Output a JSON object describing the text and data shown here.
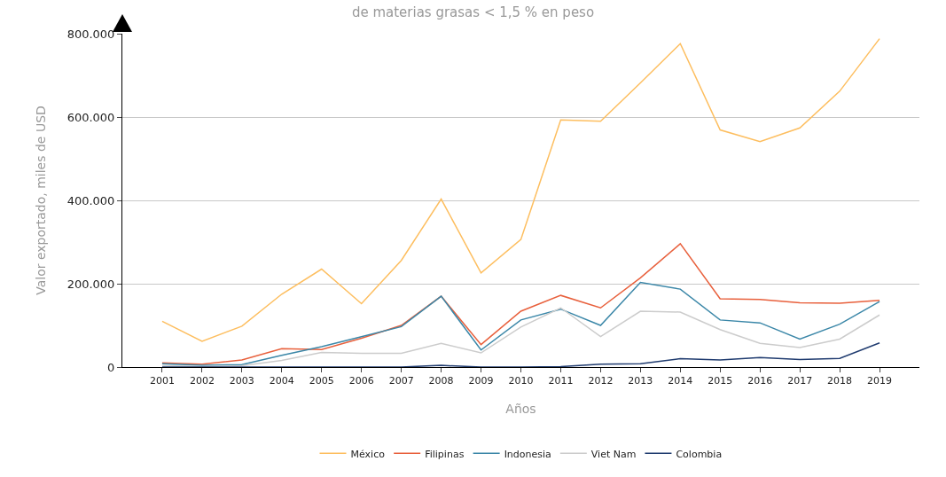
{
  "chart_data": {
    "type": "line",
    "title": "de materias grasas < 1,5 % en peso",
    "xlabel": "Años",
    "ylabel": "Valor exportado, miles de USD",
    "categories": [
      "2001",
      "2002",
      "2003",
      "2004",
      "2005",
      "2006",
      "2007",
      "2008",
      "2009",
      "2010",
      "2011",
      "2012",
      "2013",
      "2014",
      "2015",
      "2016",
      "2017",
      "2018",
      "2019"
    ],
    "series": [
      {
        "name": "México",
        "color": "#fdbe5f",
        "values": [
          110000,
          62000,
          98000,
          175000,
          235000,
          152000,
          256000,
          403000,
          226000,
          306000,
          593000,
          590000,
          682000,
          776000,
          569000,
          541000,
          574000,
          662000,
          788000
        ]
      },
      {
        "name": "Filipinas",
        "color": "#e8603c",
        "values": [
          10000,
          7000,
          17000,
          44000,
          42000,
          69000,
          100000,
          170000,
          54000,
          134000,
          172000,
          142000,
          214000,
          296000,
          164000,
          162000,
          154000,
          153000,
          160000
        ]
      },
      {
        "name": "Indonesia",
        "color": "#3b87a8",
        "values": [
          8000,
          4000,
          6000,
          28000,
          49000,
          73000,
          97000,
          170000,
          41000,
          113000,
          139000,
          100000,
          203000,
          187000,
          113000,
          106000,
          67000,
          103000,
          157000
        ]
      },
      {
        "name": "Viet Nam",
        "color": "#cccccc",
        "values": [
          3000,
          1000,
          3000,
          16000,
          35000,
          33000,
          33000,
          57000,
          34000,
          96000,
          142000,
          73000,
          134000,
          132000,
          90000,
          57000,
          47000,
          67000,
          125000
        ]
      },
      {
        "name": "Colombia",
        "color": "#1f3b6f",
        "values": [
          0,
          0,
          0,
          0,
          0,
          0,
          0,
          4000,
          0,
          0,
          1000,
          7000,
          8000,
          20000,
          17000,
          23000,
          18000,
          21000,
          58000
        ]
      }
    ],
    "ylim": [
      0,
      800000
    ],
    "yticks": [
      {
        "value": 0,
        "label": "0"
      },
      {
        "value": 200000,
        "label": "200.000"
      },
      {
        "value": 400000,
        "label": "400.000"
      },
      {
        "value": 600000,
        "label": "600.000"
      },
      {
        "value": 800000,
        "label": "800.000"
      }
    ],
    "grid": "y",
    "legend": "bottom",
    "marker": "none",
    "line_style": "solid"
  }
}
